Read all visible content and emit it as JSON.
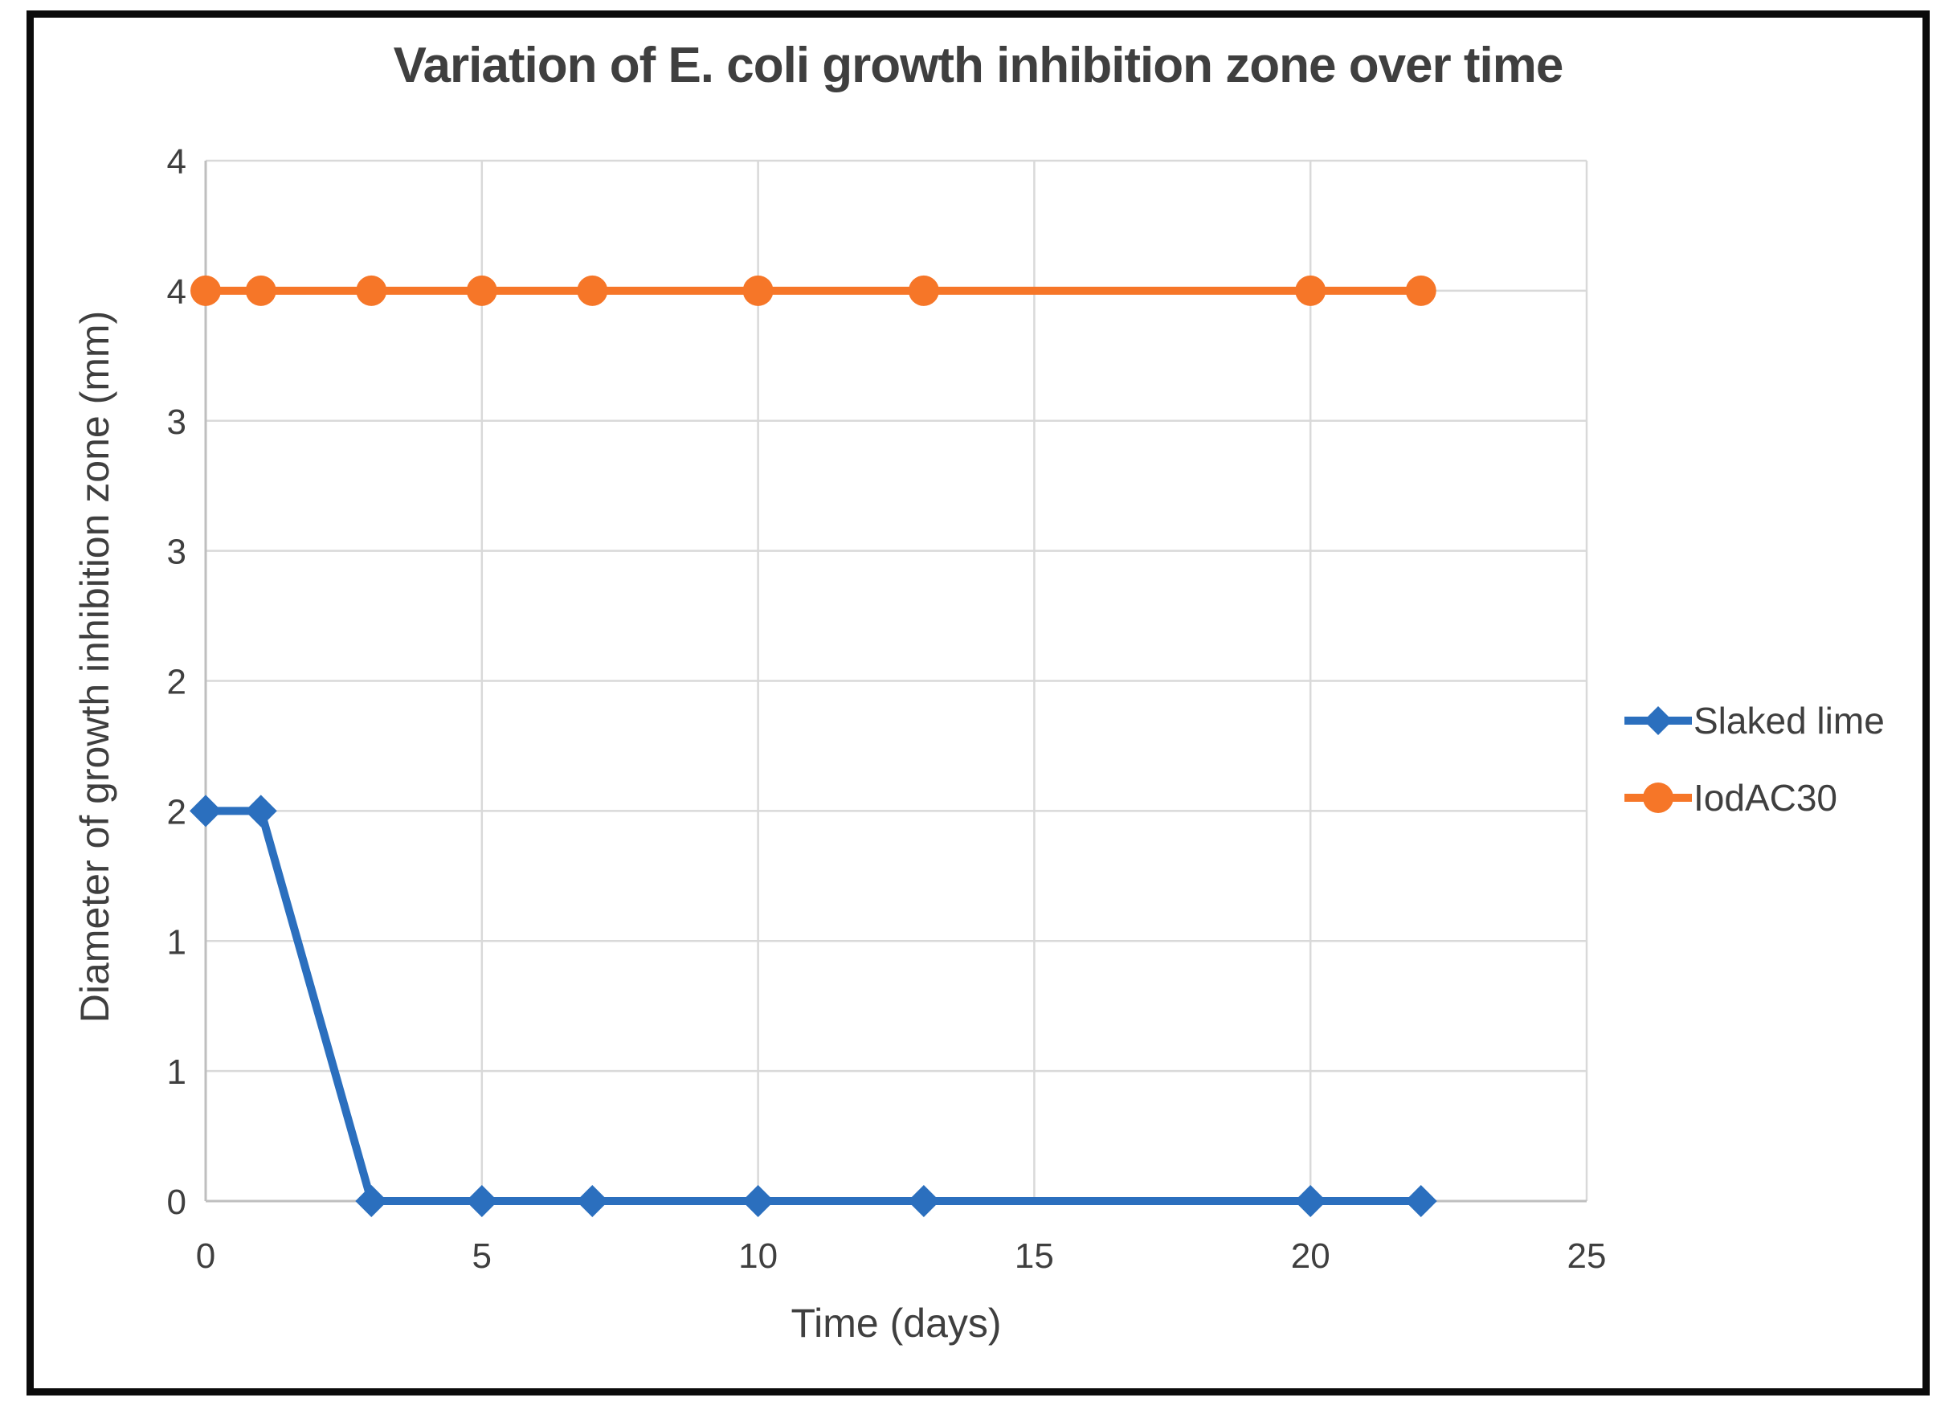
{
  "title": "Variation of E. coli growth inhibition zone over time",
  "axes": {
    "x_title": "Time (days)",
    "y_title": "Diameter of growth inhibition zone (mm)"
  },
  "legend": {
    "position": "right",
    "items": [
      {
        "label": "Slaked lime",
        "marker": "diamond-on-line"
      },
      {
        "label": "IodAC30",
        "marker": "circle-on-line"
      }
    ]
  },
  "colors": {
    "slaked_lime": "#2B6FBE",
    "iodac30": "#F67628",
    "gridline": "#D9D9D9",
    "axis_line": "#BFBFBF",
    "text": "#3F3F3F",
    "title_text": "#3F3F3F",
    "frame": "#0B0B0B",
    "background": "#FFFFFF"
  },
  "chart_data": {
    "type": "line",
    "title": "Variation of E. coli growth inhibition zone over time",
    "xlabel": "Time (days)",
    "ylabel": "Diameter of growth inhibition zone (mm)",
    "x": [
      0,
      1,
      3,
      5,
      7,
      10,
      13,
      20,
      22
    ],
    "series": [
      {
        "name": "Slaked lime",
        "color": "#2B6FBE",
        "marker": "diamond",
        "values": [
          1.5,
          1.5,
          0,
          0,
          0,
          0,
          0,
          0,
          0
        ],
        "values_as_labeled_on_axis": [
          2,
          2,
          0,
          0,
          0,
          0,
          0,
          0,
          0
        ]
      },
      {
        "name": "IodAC30",
        "color": "#F67628",
        "marker": "circle",
        "values": [
          3.5,
          3.5,
          3.5,
          3.5,
          3.5,
          3.5,
          3.5,
          3.5,
          3.5
        ],
        "values_as_labeled_on_axis": [
          4,
          4,
          4,
          4,
          4,
          4,
          4,
          4,
          4
        ]
      }
    ],
    "xlim": [
      0,
      25
    ],
    "ylim": [
      0,
      4
    ],
    "x_ticks": {
      "values": [
        0,
        5,
        10,
        15,
        20,
        25
      ],
      "labels": [
        "0",
        "5",
        "10",
        "15",
        "20",
        "25"
      ]
    },
    "y_ticks": {
      "values": [
        0,
        0.5,
        1,
        1.5,
        2,
        2.5,
        3,
        3.5,
        4
      ],
      "labels": [
        "0",
        "1",
        "1",
        "2",
        "2",
        "3",
        "3",
        "4",
        "4"
      ],
      "labels_are_rounded_half_steps": true
    },
    "grid": true,
    "legend_position": "right"
  }
}
